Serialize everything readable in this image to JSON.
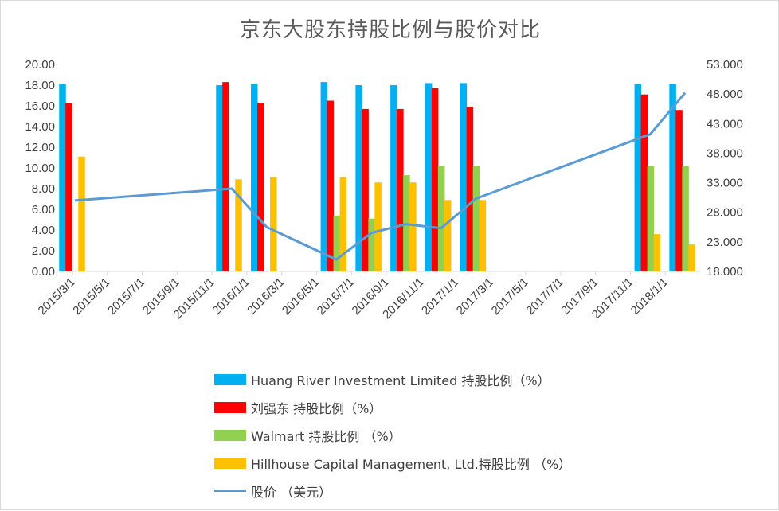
{
  "chart_data": {
    "type": "bar",
    "title": "京东大股东持股比例与股价对比",
    "left_axis": {
      "min": 0,
      "max": 20,
      "step": 2,
      "tick_labels": [
        "0.00",
        "2.00",
        "4.00",
        "6.00",
        "8.00",
        "10.00",
        "12.00",
        "14.00",
        "16.00",
        "18.00",
        "20.00"
      ]
    },
    "right_axis": {
      "min": 18,
      "max": 53,
      "step": 5,
      "tick_labels": [
        "18.000",
        "23.000",
        "28.000",
        "33.000",
        "38.000",
        "43.000",
        "48.000",
        "53.000"
      ]
    },
    "x_tick_labels": [
      "2015/3/1",
      "2015/5/1",
      "2015/7/1",
      "2015/9/1",
      "2015/11/1",
      "2016/1/1",
      "2016/3/1",
      "2016/5/1",
      "2016/7/1",
      "2016/9/1",
      "2016/11/1",
      "2017/1/1",
      "2017/3/1",
      "2017/5/1",
      "2017/7/1",
      "2017/9/1",
      "2017/11/1",
      "2018/1/1"
    ],
    "categories": [
      "2015/3/1",
      "2015/12/1",
      "2016/2/1",
      "2016/6/1",
      "2016/8/1",
      "2016/10/1",
      "2016/12/1",
      "2017/2/1",
      "2017/12/1",
      "2018/2/1"
    ],
    "series": [
      {
        "name": "Huang River Investment Limited 持股比例（%）",
        "color": "#00b0f0",
        "axis": "left",
        "type": "bar",
        "values": [
          18.1,
          18.0,
          18.1,
          18.3,
          18.0,
          18.0,
          18.2,
          18.2,
          18.1,
          18.1
        ]
      },
      {
        "name": "刘强东 持股比例（%）",
        "color": "#ff0000",
        "axis": "left",
        "type": "bar",
        "values": [
          16.3,
          18.3,
          16.3,
          16.5,
          15.7,
          15.7,
          17.7,
          15.9,
          17.1,
          15.6
        ]
      },
      {
        "name": "Walmart 持股比例 （%）",
        "color": "#92d050",
        "axis": "left",
        "type": "bar",
        "values": [
          null,
          null,
          null,
          5.4,
          5.1,
          9.3,
          10.2,
          10.2,
          10.2,
          10.2
        ]
      },
      {
        "name": "Hillhouse Capital Management, Ltd.持股比例 （%）",
        "color": "#ffc000",
        "axis": "left",
        "type": "bar",
        "values": [
          11.1,
          8.9,
          9.1,
          9.1,
          8.6,
          8.6,
          6.9,
          6.9,
          3.6,
          2.6
        ]
      },
      {
        "name": "股价 （美元）",
        "color": "#5b9bd5",
        "axis": "right",
        "type": "line",
        "values": [
          30.0,
          32.0,
          25.5,
          20.0,
          24.5,
          26.0,
          25.3,
          30.3,
          41.2,
          48.2
        ]
      }
    ],
    "legend_position": "bottom"
  }
}
